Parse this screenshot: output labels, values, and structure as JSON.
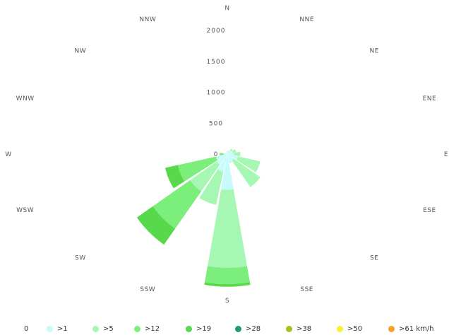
{
  "chart_data": {
    "type": "windrose",
    "directions": [
      "N",
      "NNE",
      "NE",
      "ENE",
      "E",
      "ESE",
      "SE",
      "SSE",
      "S",
      "SSW",
      "SW",
      "WSW",
      "W",
      "WNW",
      "NW",
      "NNW"
    ],
    "radial_ticks": [
      "0",
      "500",
      "1000",
      "1500",
      "2000"
    ],
    "radial_max": 2000,
    "unit": "km/h",
    "legend": [
      {
        "label": "0",
        "color": "#ffffff"
      },
      {
        "label": ">1",
        "color": "#c7fafa"
      },
      {
        "label": ">5",
        "color": "#a6f7b4"
      },
      {
        "label": ">12",
        "color": "#7cee7c"
      },
      {
        "label": ">19",
        "color": "#57d94b"
      },
      {
        "label": ">28",
        "color": "#1f9a78"
      },
      {
        "label": ">38",
        "color": "#a3c11f"
      },
      {
        "label": ">50",
        "color": "#fbf02c"
      },
      {
        "label": ">61 km/h",
        "color": "#f7a02a"
      }
    ],
    "series": [
      {
        "name": ">1",
        "values": [
          50,
          60,
          70,
          90,
          100,
          170,
          120,
          150,
          550,
          280,
          200,
          180,
          60,
          40,
          30,
          30
        ]
      },
      {
        "name": ">5",
        "values": [
          0,
          0,
          30,
          50,
          100,
          350,
          500,
          0,
          1200,
          520,
          500,
          0,
          0,
          0,
          0,
          0
        ]
      },
      {
        "name": ">12",
        "values": [
          0,
          0,
          0,
          0,
          0,
          0,
          0,
          0,
          250,
          0,
          700,
          600,
          60,
          0,
          0,
          0
        ]
      },
      {
        "name": ">19",
        "values": [
          0,
          0,
          0,
          0,
          0,
          0,
          0,
          0,
          40,
          0,
          300,
          200,
          0,
          0,
          0,
          0
        ]
      }
    ]
  }
}
